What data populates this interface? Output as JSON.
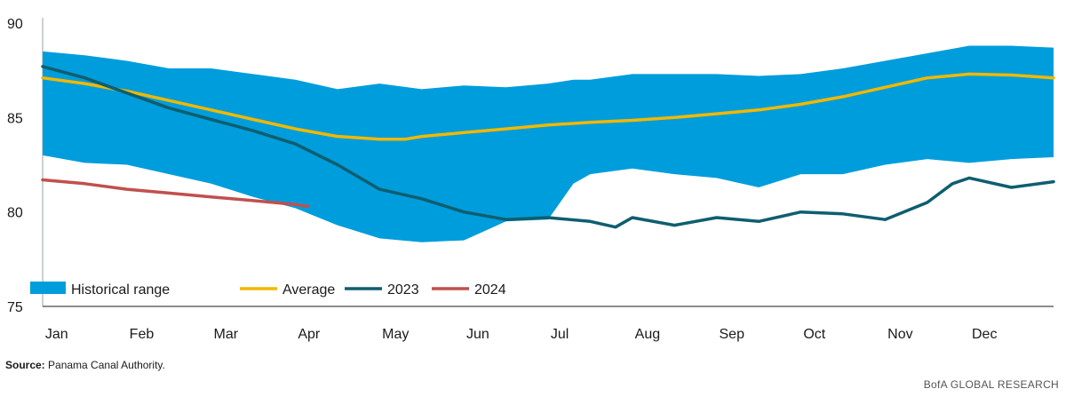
{
  "chart_data": {
    "type": "line",
    "title": "",
    "xlabel": "",
    "ylabel": "",
    "ylim": [
      75,
      90
    ],
    "yticks": [
      75,
      80,
      85,
      90
    ],
    "categories": [
      "Jan",
      "Feb",
      "Mar",
      "Apr",
      "May",
      "Jun",
      "Jul",
      "Aug",
      "Sep",
      "Oct",
      "Nov",
      "Dec"
    ],
    "x_range": [
      0,
      12
    ],
    "series": [
      {
        "name": "Historical range",
        "kind": "band",
        "color": "#009ddc",
        "x": [
          0.0,
          0.5,
          1.0,
          1.5,
          2.0,
          2.5,
          3.0,
          3.5,
          4.0,
          4.5,
          5.0,
          5.5,
          6.0,
          6.3,
          6.5,
          7.0,
          7.5,
          8.0,
          8.5,
          9.0,
          9.5,
          10.0,
          10.5,
          11.0,
          11.5,
          12.0
        ],
        "upper": [
          88.5,
          88.3,
          88.0,
          87.6,
          87.6,
          87.3,
          87.0,
          86.5,
          86.8,
          86.5,
          86.7,
          86.6,
          86.8,
          87.0,
          87.0,
          87.3,
          87.3,
          87.3,
          87.2,
          87.3,
          87.6,
          88.0,
          88.4,
          88.8,
          88.8,
          88.7
        ],
        "lower": [
          83.0,
          82.6,
          82.5,
          82.0,
          81.5,
          80.8,
          80.2,
          79.3,
          78.6,
          78.4,
          78.5,
          79.5,
          79.6,
          81.5,
          82.0,
          82.3,
          82.0,
          81.8,
          81.3,
          82.0,
          82.0,
          82.5,
          82.8,
          82.6,
          82.8,
          82.9
        ]
      },
      {
        "name": "Average",
        "kind": "line",
        "color": "#f1b800",
        "x": [
          0.0,
          0.5,
          1.0,
          1.5,
          2.0,
          2.5,
          3.0,
          3.5,
          4.0,
          4.3,
          4.5,
          5.0,
          5.5,
          6.0,
          6.5,
          7.0,
          7.5,
          8.0,
          8.5,
          9.0,
          9.5,
          10.0,
          10.5,
          11.0,
          11.5,
          12.0
        ],
        "values": [
          87.1,
          86.8,
          86.4,
          85.9,
          85.4,
          84.9,
          84.4,
          84.0,
          83.85,
          83.85,
          84.0,
          84.2,
          84.4,
          84.6,
          84.75,
          84.85,
          85.0,
          85.2,
          85.4,
          85.7,
          86.1,
          86.6,
          87.1,
          87.3,
          87.25,
          87.1
        ]
      },
      {
        "name": "2023",
        "kind": "line",
        "color": "#0e5e6f",
        "x": [
          0.0,
          0.5,
          1.0,
          1.5,
          2.0,
          2.5,
          3.0,
          3.5,
          4.0,
          4.5,
          5.0,
          5.5,
          6.0,
          6.5,
          6.8,
          7.0,
          7.5,
          8.0,
          8.5,
          9.0,
          9.5,
          10.0,
          10.5,
          10.8,
          11.0,
          11.5,
          12.0
        ],
        "values": [
          87.7,
          87.1,
          86.3,
          85.5,
          84.9,
          84.3,
          83.6,
          82.5,
          81.2,
          80.7,
          80.0,
          79.6,
          79.7,
          79.5,
          79.2,
          79.7,
          79.3,
          79.7,
          79.5,
          80.0,
          79.9,
          79.6,
          80.5,
          81.5,
          81.8,
          81.3,
          81.6
        ]
      },
      {
        "name": "2024",
        "kind": "line",
        "color": "#c0504d",
        "x": [
          0.0,
          0.5,
          1.0,
          1.5,
          2.0,
          2.5,
          3.0,
          3.15
        ],
        "values": [
          81.7,
          81.5,
          81.2,
          81.0,
          80.8,
          80.6,
          80.4,
          80.3
        ]
      }
    ],
    "legend": [
      "Historical range",
      "Average",
      "2023",
      "2024"
    ],
    "legend_position": "bottom-left inside"
  },
  "footer": {
    "source_label": "Source:",
    "source_text": " Panama Canal Authority.",
    "brand": "BofA GLOBAL RESEARCH"
  }
}
